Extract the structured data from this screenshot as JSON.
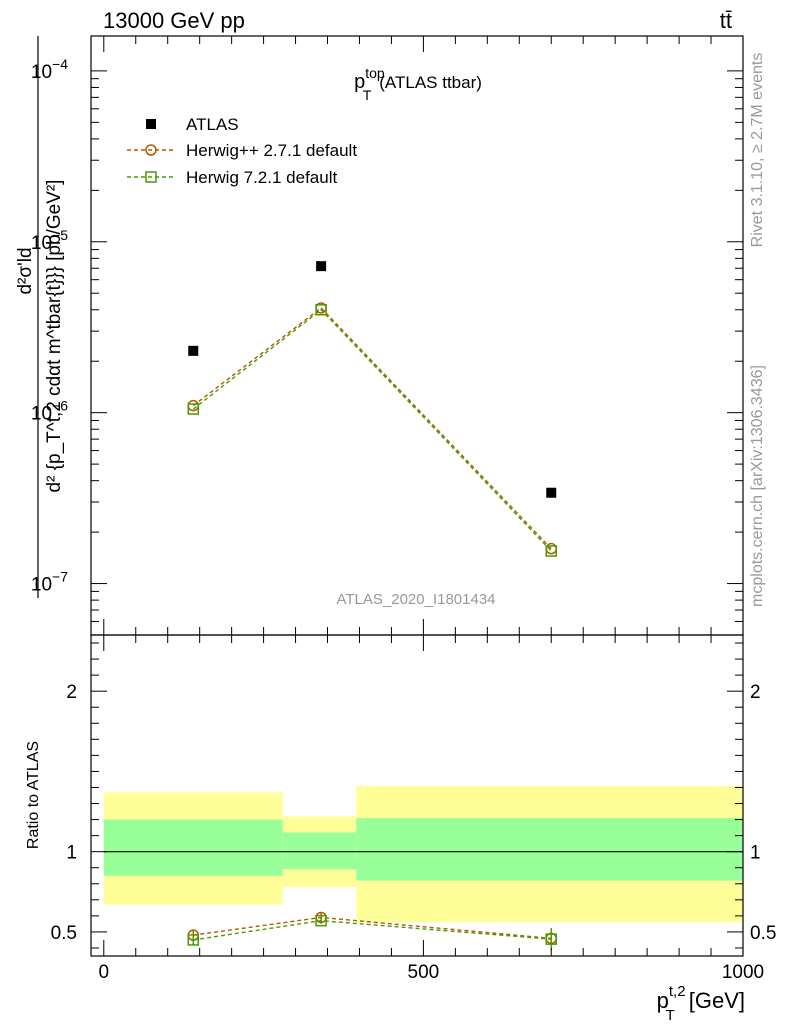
{
  "header": {
    "left": "13000 GeV pp",
    "right": "tt̄"
  },
  "side_labels": {
    "rivet": "Rivet 3.1.10, ≥ 2.7M events",
    "source": "mcplots.cern.ch [arXiv:1306.3436]"
  },
  "chart_data": [
    {
      "type": "scatter",
      "panel": "main",
      "title_main": "p",
      "title_sup": "top",
      "title_sub": "T",
      "title_rest": "(ATLAS ttbar)",
      "analysis_label": "ATLAS_2020_I1801434",
      "ylabel_num": "d²σ'ld",
      "ylabel_den": "d² {p_T^t,2 cdαt m^tbar{t}}} [pb/GeV²]",
      "yscale": "log",
      "xlim": [
        -20,
        1000
      ],
      "ylim": [
        5e-08,
        0.00016
      ],
      "ytick_labels": [
        {
          "value": 1e-07,
          "base": "10",
          "exp": "−7"
        },
        {
          "value": 1e-06,
          "base": "10",
          "exp": "−6"
        },
        {
          "value": 1e-05,
          "base": "10",
          "exp": "−5"
        },
        {
          "value": 0.0001,
          "base": "10",
          "exp": "−4"
        }
      ],
      "legend_position": "top-left",
      "series": [
        {
          "name": "ATLAS",
          "marker": "filled-square",
          "color": "#000000",
          "line": "none",
          "x": [
            140,
            340,
            700
          ],
          "y": [
            2.3e-06,
            7.2e-06,
            3.4e-07
          ]
        },
        {
          "name": "Herwig++ 2.7.1 default",
          "marker": "open-circle",
          "color": "#b35900",
          "line": "dashed",
          "x": [
            140,
            340,
            700
          ],
          "y": [
            1.1e-06,
            4.1e-06,
            1.6e-07
          ]
        },
        {
          "name": "Herwig 7.2.1 default",
          "marker": "open-square",
          "color": "#4a9a00",
          "line": "dashed",
          "x": [
            140,
            340,
            700
          ],
          "y": [
            1.05e-06,
            4e-06,
            1.55e-07
          ]
        }
      ]
    },
    {
      "type": "scatter",
      "panel": "ratio",
      "ylabel": "Ratio to ATLAS",
      "xlabel_main": "p",
      "xlabel_sup": "t,2",
      "xlabel_sub": "T",
      "xlabel_rest": "[GeV]",
      "xlim": [
        -20,
        1000
      ],
      "ylim": [
        0.35,
        2.35
      ],
      "xticks": [
        0,
        500,
        1000
      ],
      "xtick_labels": [
        "0",
        "500",
        "1000"
      ],
      "yticks": [
        0.5,
        1,
        2
      ],
      "ytick_labels": [
        "0.5",
        "1",
        "2"
      ],
      "uncertainty_bands": [
        {
          "x_from": 0,
          "x_to": 280,
          "inner_low": 0.85,
          "inner_high": 1.2,
          "outer_low": 0.67,
          "outer_high": 1.37
        },
        {
          "x_from": 280,
          "x_to": 395,
          "inner_low": 0.89,
          "inner_high": 1.12,
          "outer_low": 0.78,
          "outer_high": 1.22
        },
        {
          "x_from": 395,
          "x_to": 1000,
          "inner_low": 0.82,
          "inner_high": 1.21,
          "outer_low": 0.56,
          "outer_high": 1.41
        }
      ],
      "band_colors": {
        "inner": "#99ff99",
        "outer": "#ffff99"
      },
      "series": [
        {
          "name": "Herwig++ 2.7.1 default",
          "marker": "open-circle",
          "color": "#b35900",
          "x": [
            140,
            340,
            700
          ],
          "y": [
            0.48,
            0.59,
            0.46
          ],
          "err": [
            0.03,
            0.03,
            0.06
          ]
        },
        {
          "name": "Herwig 7.2.1 default",
          "marker": "open-square",
          "color": "#4a9a00",
          "x": [
            140,
            340,
            700
          ],
          "y": [
            0.45,
            0.57,
            0.455
          ],
          "err": [
            0.03,
            0.02,
            0.07
          ]
        }
      ]
    }
  ]
}
